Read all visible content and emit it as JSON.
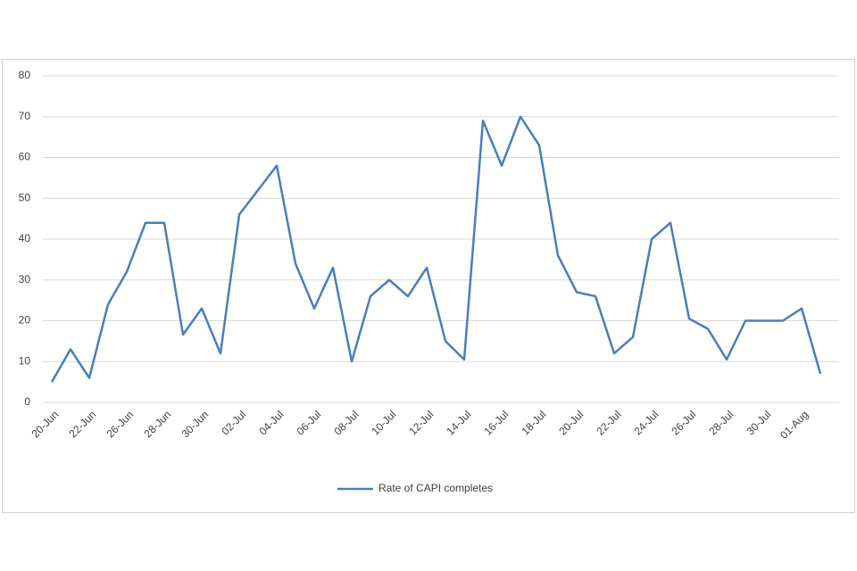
{
  "chart_data": {
    "type": "line",
    "categories": [
      "20-Jun",
      null,
      "22-Jun",
      null,
      "26-Jun",
      null,
      "28-Jun",
      null,
      "30-Jun",
      null,
      "02-Jul",
      null,
      "04-Jul",
      null,
      "06-Jul",
      null,
      "08-Jul",
      null,
      "10-Jul",
      null,
      "12-Jul",
      null,
      "14-Jul",
      null,
      "16-Jul",
      null,
      "18-Jul",
      null,
      "20-Jul",
      null,
      "22-Jul",
      null,
      "24-Jul",
      null,
      "26-Jul",
      null,
      "28-Jul",
      null,
      "30-Jul",
      null,
      "01-Aug",
      null
    ],
    "series": [
      {
        "name": "Rate of CAPI completes",
        "color": "#4a7ebb",
        "values": [
          5,
          13,
          6,
          24,
          32,
          44,
          44,
          16.6,
          23,
          12,
          46,
          52,
          58,
          34,
          23,
          33,
          10,
          26,
          30,
          26,
          33,
          15,
          10.5,
          69,
          58,
          70,
          63,
          36,
          27,
          26,
          12,
          16,
          40,
          44,
          20.5,
          18,
          10.5,
          20,
          20,
          20,
          23,
          7
        ]
      }
    ],
    "ylim": [
      0,
      80
    ],
    "yticks": [
      0,
      10,
      20,
      30,
      40,
      50,
      60,
      70,
      80
    ],
    "grid": true,
    "legend": "bottom"
  }
}
